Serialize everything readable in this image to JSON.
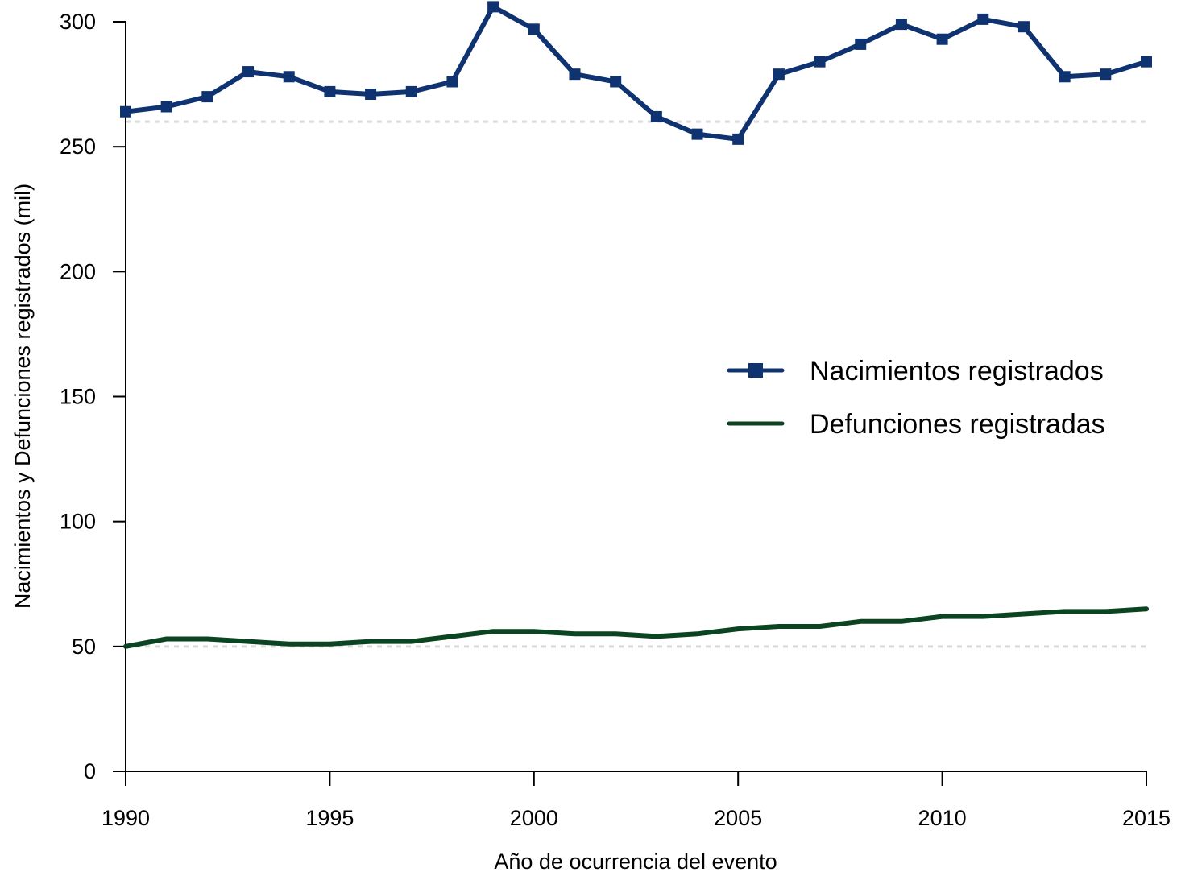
{
  "chart_data": {
    "type": "line",
    "title": "",
    "xlabel": "Año de ocurrencia del evento",
    "ylabel": "Nacimientos y Defunciones registrados (mil)",
    "xlim": [
      1990,
      2015
    ],
    "ylim": [
      0,
      300
    ],
    "xticks": [
      1990,
      1995,
      2000,
      2005,
      2010,
      2015
    ],
    "yticks": [
      0,
      50,
      100,
      150,
      200,
      250,
      300
    ],
    "reference_lines": [
      260,
      50
    ],
    "grid": false,
    "legend_position": "center-right",
    "x": [
      1990,
      1991,
      1992,
      1993,
      1994,
      1995,
      1996,
      1997,
      1998,
      1999,
      2000,
      2001,
      2002,
      2003,
      2004,
      2005,
      2006,
      2007,
      2008,
      2009,
      2010,
      2011,
      2012,
      2013,
      2014,
      2015
    ],
    "series": [
      {
        "name": "Nacimientos registrados",
        "color": "#0f3270",
        "marker": "square",
        "values": [
          264,
          266,
          270,
          280,
          278,
          272,
          271,
          272,
          276,
          306,
          297,
          279,
          276,
          262,
          255,
          253,
          279,
          284,
          291,
          299,
          293,
          301,
          298,
          278,
          279,
          284
        ]
      },
      {
        "name": "Defunciones registradas",
        "color": "#0a4420",
        "marker": "none",
        "values": [
          50,
          53,
          53,
          52,
          51,
          51,
          52,
          52,
          54,
          56,
          56,
          55,
          55,
          54,
          55,
          57,
          58,
          58,
          60,
          60,
          62,
          62,
          63,
          64,
          64,
          65
        ]
      }
    ]
  }
}
